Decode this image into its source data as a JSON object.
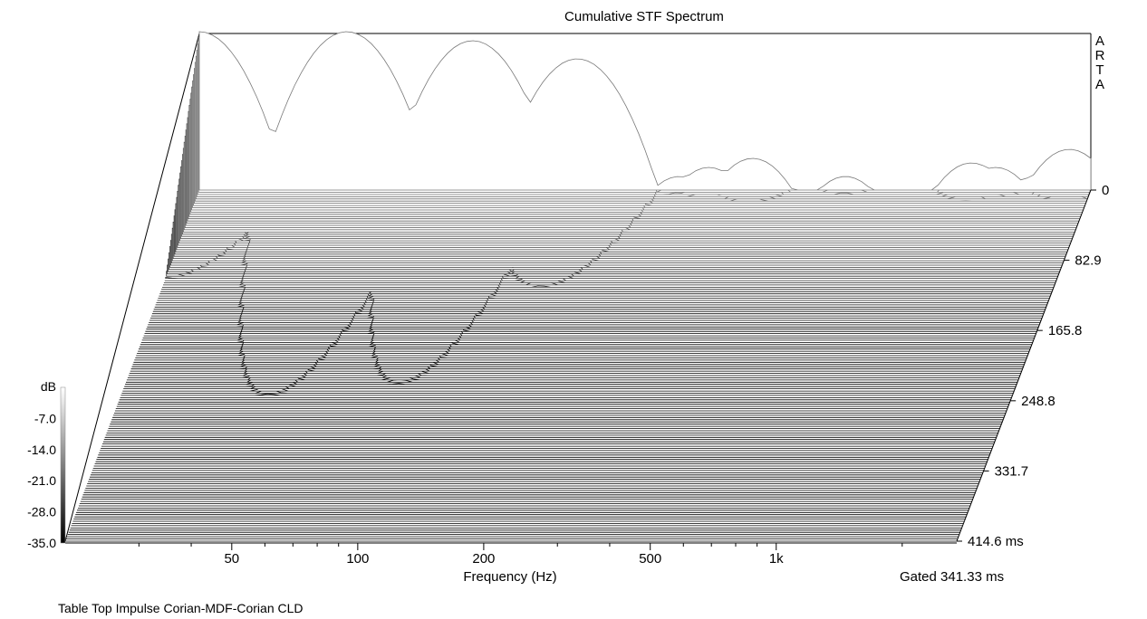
{
  "chart_data": {
    "type": "waterfall",
    "title": "Cumulative STF Spectrum",
    "brand": "ARTA",
    "xlabel": "Frequency (Hz)",
    "x_scale": "log",
    "xlim": [
      20,
      2700
    ],
    "x_ticks": [
      {
        "value": 50,
        "label": "50"
      },
      {
        "value": 100,
        "label": "100"
      },
      {
        "value": 200,
        "label": "200"
      },
      {
        "value": 500,
        "label": "500"
      },
      {
        "value": 1000,
        "label": "1k"
      }
    ],
    "db_label": "dB",
    "db_range": [
      -35,
      0
    ],
    "db_ticks": [
      {
        "value": -7,
        "label": "-7.0"
      },
      {
        "value": -14,
        "label": "-14.0"
      },
      {
        "value": -21,
        "label": "-21.0"
      },
      {
        "value": -28,
        "label": "-28.0"
      },
      {
        "value": -35,
        "label": "-35.0"
      }
    ],
    "time_axis_unit": "ms",
    "time_range_ms": [
      0,
      414.6
    ],
    "time_ticks": [
      {
        "value": 0,
        "label": "0"
      },
      {
        "value": 82.9,
        "label": "82.9"
      },
      {
        "value": 165.8,
        "label": "165.8"
      },
      {
        "value": 248.8,
        "label": "248.8"
      },
      {
        "value": 331.7,
        "label": "331.7"
      },
      {
        "value": 414.6,
        "label": "414.6 ms"
      }
    ],
    "gate_note": "Gated 341.33 ms",
    "grid": false,
    "slices": 160,
    "spectrum_peaks": [
      {
        "f": 20,
        "db": 0,
        "decay_ms": 30
      },
      {
        "f": 45,
        "db": 0,
        "decay_ms": 70
      },
      {
        "f": 90,
        "db": -2,
        "decay_ms": 70
      },
      {
        "f": 160,
        "db": -6,
        "decay_ms": 40
      },
      {
        "f": 280,
        "db": -32,
        "decay_ms": 20
      },
      {
        "f": 330,
        "db": -30,
        "decay_ms": 20
      },
      {
        "f": 420,
        "db": -28,
        "decay_ms": 22
      },
      {
        "f": 700,
        "db": -32,
        "decay_ms": 20
      },
      {
        "f": 1400,
        "db": -29,
        "decay_ms": 22
      },
      {
        "f": 1600,
        "db": -30,
        "decay_ms": 18
      },
      {
        "f": 2000,
        "db": -32,
        "decay_ms": 16
      },
      {
        "f": 2400,
        "db": -26,
        "decay_ms": 14
      }
    ]
  },
  "footer": {
    "measurement_name": "Table Top Impulse Corian-MDF-Corian CLD"
  }
}
